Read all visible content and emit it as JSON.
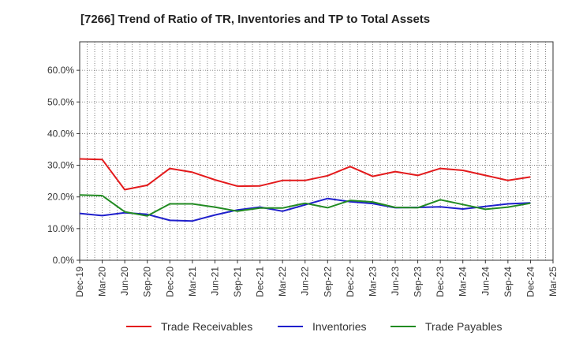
{
  "chart_data": {
    "type": "line",
    "title": "[7266]  Trend of Ratio of TR, Inventories and TP to Total Assets",
    "x": [
      "Dec-19",
      "Mar-20",
      "Jun-20",
      "Sep-20",
      "Dec-20",
      "Mar-21",
      "Jun-21",
      "Sep-21",
      "Dec-21",
      "Mar-22",
      "Jun-22",
      "Sep-22",
      "Dec-22",
      "Mar-23",
      "Jun-23",
      "Sep-23",
      "Dec-23",
      "Mar-24",
      "Jun-24",
      "Sep-24",
      "Dec-24",
      "Mar-25"
    ],
    "y_ticks": [
      "0.0%",
      "10.0%",
      "20.0%",
      "30.0%",
      "40.0%",
      "50.0%",
      "60.0%"
    ],
    "ylim": [
      0,
      0.6
    ],
    "y_format": "percent",
    "grid": true,
    "legend_position": "bottom",
    "series": [
      {
        "name": "Trade Receivables",
        "color": "#e31a1c",
        "values": [
          0.32,
          0.318,
          0.223,
          0.237,
          0.29,
          0.278,
          0.254,
          0.234,
          0.235,
          0.252,
          0.252,
          0.267,
          0.296,
          0.265,
          0.28,
          0.268,
          0.29,
          0.284,
          0.268,
          0.252,
          0.263,
          null
        ]
      },
      {
        "name": "Inventories",
        "color": "#1f1fcc",
        "values": [
          0.148,
          0.141,
          0.15,
          0.145,
          0.126,
          0.124,
          0.143,
          0.159,
          0.168,
          0.155,
          0.175,
          0.195,
          0.185,
          0.179,
          0.166,
          0.167,
          0.169,
          0.162,
          0.17,
          0.178,
          0.181,
          null
        ]
      },
      {
        "name": "Trade Payables",
        "color": "#228b22",
        "values": [
          0.206,
          0.204,
          0.153,
          0.14,
          0.178,
          0.178,
          0.168,
          0.155,
          0.165,
          0.165,
          0.18,
          0.166,
          0.189,
          0.184,
          0.167,
          0.166,
          0.191,
          0.176,
          0.161,
          0.168,
          0.18,
          null
        ]
      }
    ]
  }
}
